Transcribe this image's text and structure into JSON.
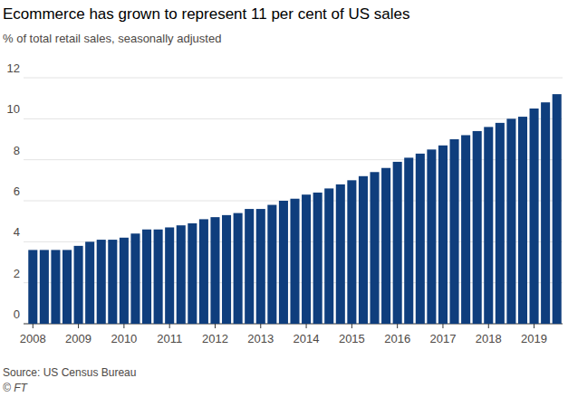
{
  "chart_data": {
    "type": "bar",
    "title": "Ecommerce has grown to represent 11 per cent of US sales",
    "subtitle": "% of total retail sales, seasonally adjusted",
    "source": "Source: US Census Bureau",
    "credit": "© FT",
    "categories": [
      "2008",
      null,
      null,
      null,
      "2009",
      null,
      null,
      null,
      "2010",
      null,
      null,
      null,
      "2011",
      null,
      null,
      null,
      "2012",
      null,
      null,
      null,
      "2013",
      null,
      null,
      null,
      "2014",
      null,
      null,
      null,
      "2015",
      null,
      null,
      null,
      "2016",
      null,
      null,
      null,
      "2017",
      null,
      null,
      null,
      "2018",
      null,
      null,
      null,
      "2019",
      null,
      null
    ],
    "values": [
      3.6,
      3.6,
      3.6,
      3.6,
      3.8,
      4.0,
      4.1,
      4.1,
      4.2,
      4.4,
      4.6,
      4.6,
      4.7,
      4.8,
      4.9,
      5.1,
      5.2,
      5.3,
      5.4,
      5.6,
      5.6,
      5.8,
      6.0,
      6.1,
      6.3,
      6.4,
      6.6,
      6.8,
      7.0,
      7.2,
      7.4,
      7.6,
      7.9,
      8.1,
      8.3,
      8.5,
      8.7,
      9.0,
      9.2,
      9.4,
      9.6,
      9.8,
      10.0,
      10.1,
      10.5,
      10.8,
      11.2
    ],
    "color": "#0f3e7d",
    "ylim": [
      0,
      12
    ],
    "yticks": [
      0,
      2,
      4,
      6,
      8,
      10,
      12
    ],
    "grid": true
  }
}
